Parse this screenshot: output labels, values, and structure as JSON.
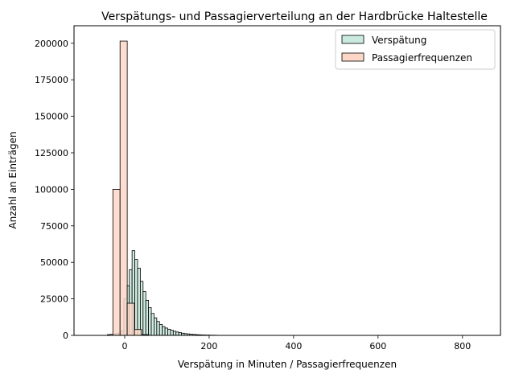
{
  "chart_data": {
    "type": "bar",
    "title": "Verspätungs- und Passagierverteilung an der Hardbrücke Haltestelle",
    "xlabel": "Verspätung in Minuten / Passagierfrequenzen",
    "ylabel": "Anzahl an Einträgen",
    "xlim": [
      -120,
      890
    ],
    "ylim": [
      0,
      212000
    ],
    "xticks": [
      0,
      200,
      400,
      600,
      800
    ],
    "yticks": [
      0,
      25000,
      50000,
      75000,
      100000,
      125000,
      150000,
      175000,
      200000
    ],
    "grid": false,
    "legend_position": "top-right",
    "series": [
      {
        "name": "Verspätung",
        "color": "#c9eadd",
        "bin_width": 6.5,
        "bins": [
          {
            "x0": -41,
            "count": 500
          },
          {
            "x0": -34.5,
            "count": 700
          },
          {
            "x0": -28,
            "count": 900
          },
          {
            "x0": -21.5,
            "count": 1200
          },
          {
            "x0": -15,
            "count": 1500
          },
          {
            "x0": -8.5,
            "count": 3000
          },
          {
            "x0": -2,
            "count": 25000
          },
          {
            "x0": 4.5,
            "count": 34000
          },
          {
            "x0": 11,
            "count": 45000
          },
          {
            "x0": 17.5,
            "count": 58000
          },
          {
            "x0": 24,
            "count": 52000
          },
          {
            "x0": 30.5,
            "count": 46000
          },
          {
            "x0": 37,
            "count": 37000
          },
          {
            "x0": 43.5,
            "count": 30000
          },
          {
            "x0": 50,
            "count": 24000
          },
          {
            "x0": 56.5,
            "count": 19000
          },
          {
            "x0": 63,
            "count": 15000
          },
          {
            "x0": 69.5,
            "count": 12000
          },
          {
            "x0": 76,
            "count": 9500
          },
          {
            "x0": 82.5,
            "count": 7500
          },
          {
            "x0": 89,
            "count": 6000
          },
          {
            "x0": 95.5,
            "count": 5000
          },
          {
            "x0": 102,
            "count": 4200
          },
          {
            "x0": 108.5,
            "count": 3500
          },
          {
            "x0": 115,
            "count": 2800
          },
          {
            "x0": 121.5,
            "count": 2300
          },
          {
            "x0": 128,
            "count": 1900
          },
          {
            "x0": 134.5,
            "count": 1500
          },
          {
            "x0": 141,
            "count": 1200
          },
          {
            "x0": 147.5,
            "count": 1000
          },
          {
            "x0": 154,
            "count": 800
          },
          {
            "x0": 160.5,
            "count": 650
          },
          {
            "x0": 167,
            "count": 500
          },
          {
            "x0": 173.5,
            "count": 400
          },
          {
            "x0": 180,
            "count": 320
          },
          {
            "x0": 186.5,
            "count": 260
          },
          {
            "x0": 193,
            "count": 200
          },
          {
            "x0": 199.5,
            "count": 160
          },
          {
            "x0": 206,
            "count": 120
          },
          {
            "x0": 212.5,
            "count": 90
          }
        ]
      },
      {
        "name": "Passagierfrequenzen",
        "color": "#fcd7c8",
        "bin_width": 17,
        "bins": [
          {
            "x0": -28,
            "count": 100000
          },
          {
            "x0": -11,
            "count": 201500
          },
          {
            "x0": 6,
            "count": 22000
          },
          {
            "x0": 23,
            "count": 4000
          },
          {
            "x0": 40,
            "count": 500
          }
        ]
      }
    ]
  }
}
